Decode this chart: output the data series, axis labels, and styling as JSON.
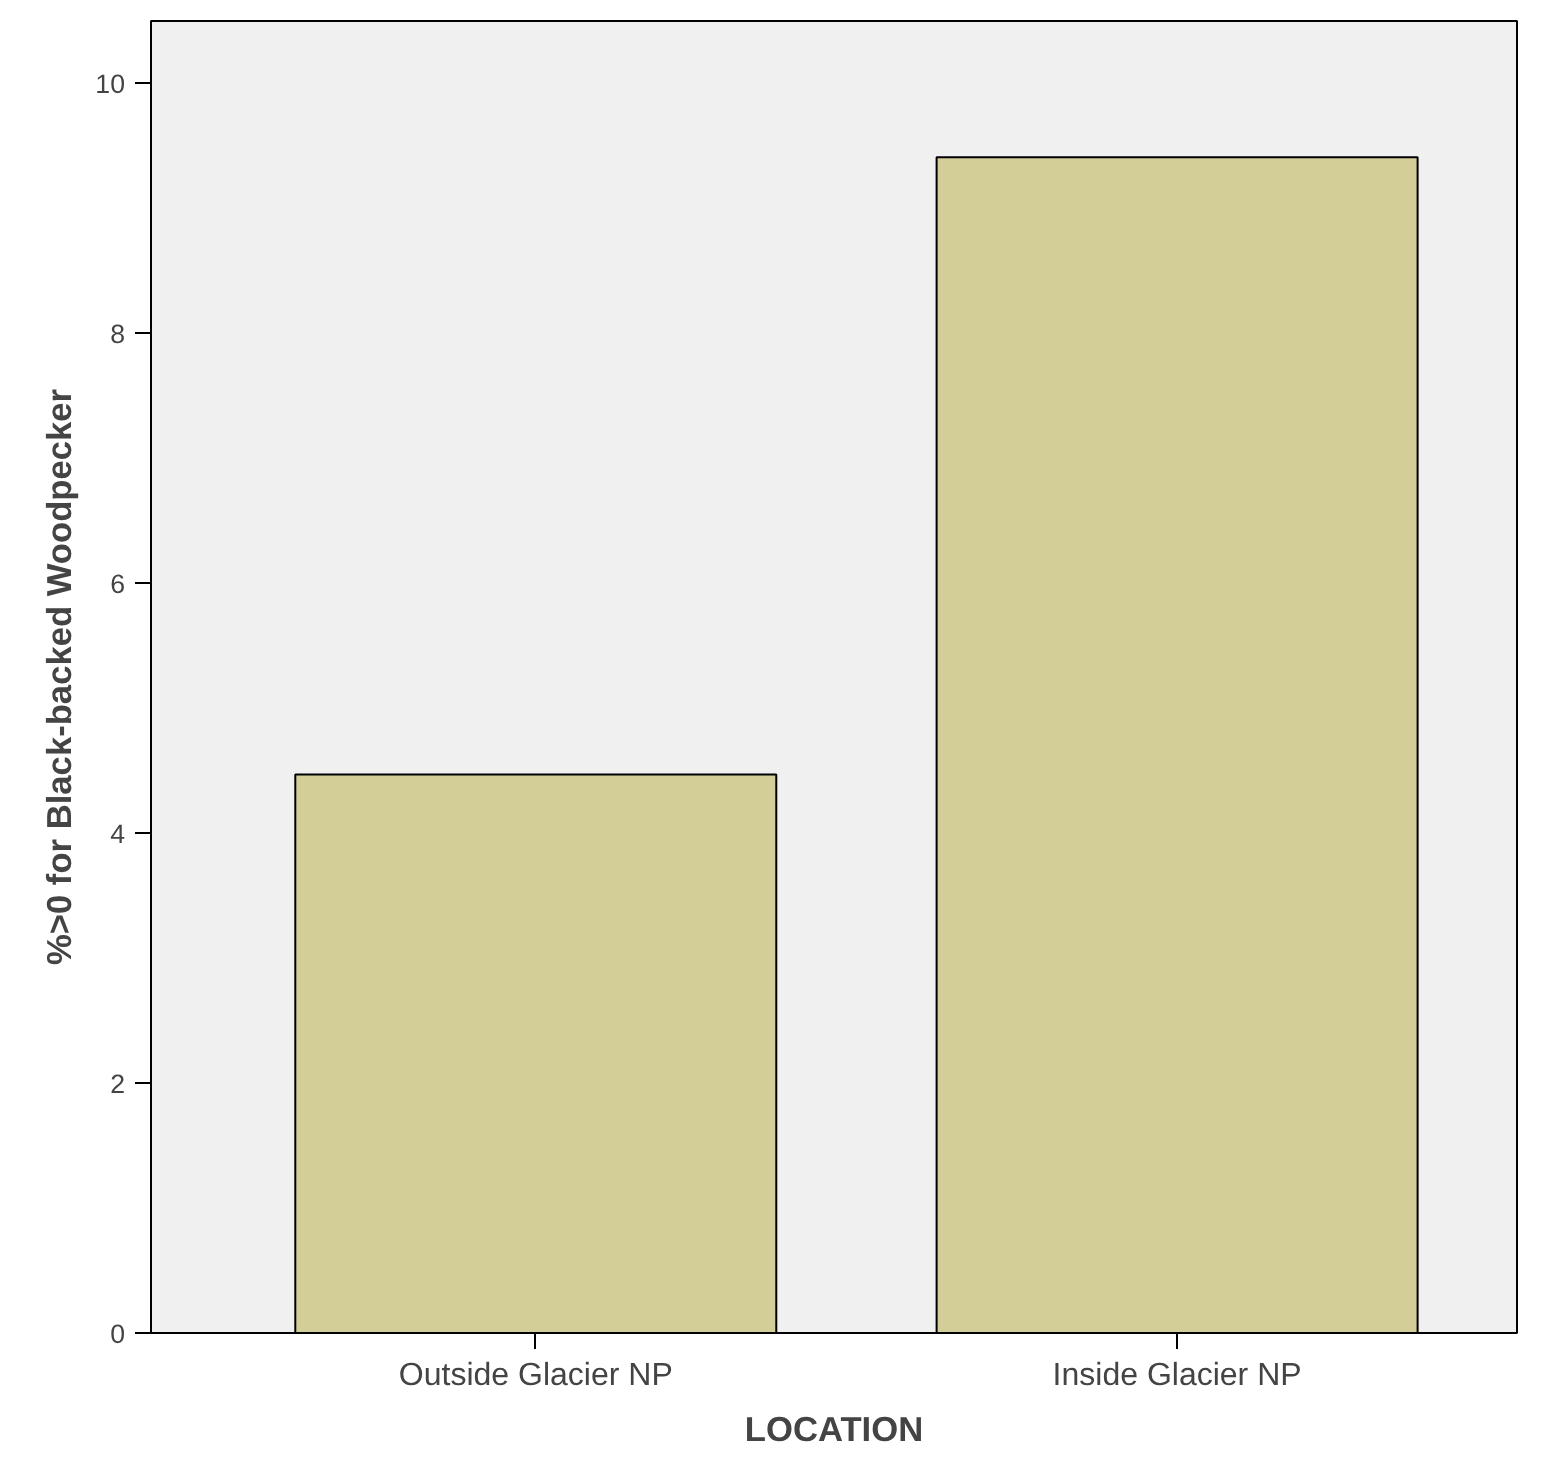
{
  "chart_data": {
    "type": "bar",
    "categories": [
      "Outside Glacier NP",
      "Inside Glacier NP"
    ],
    "values": [
      4.47,
      9.41
    ],
    "color": "#d3ce97",
    "xlabel": "LOCATION",
    "ylabel": "%>0 for Black-backed Woodpecker",
    "ylim": [
      0,
      10.5
    ],
    "yticks": [
      0,
      2,
      4,
      6,
      8,
      10
    ]
  }
}
